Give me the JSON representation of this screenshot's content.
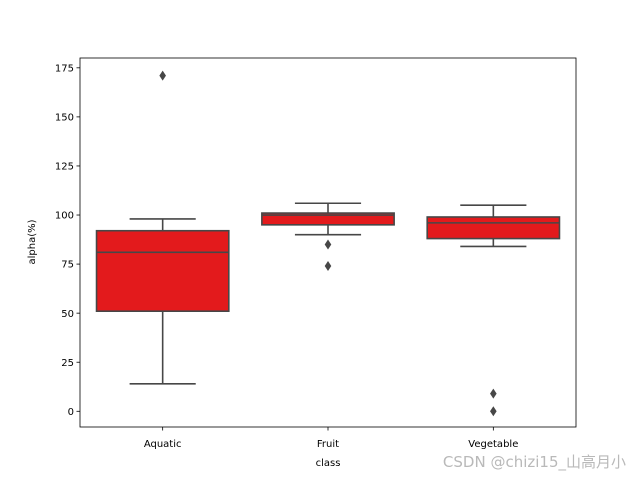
{
  "chart_data": {
    "type": "boxplot",
    "categories": [
      "Aquatic",
      "Fruit",
      "Vegetable"
    ],
    "xlabel": "class",
    "ylabel": "alpha(%)",
    "ylim": [
      -8,
      180
    ],
    "yticks": [
      0,
      25,
      50,
      75,
      100,
      125,
      150,
      175
    ],
    "grid": false,
    "box_color": "#e31a1c",
    "line_color": "#474747",
    "boxes": [
      {
        "category": "Aquatic",
        "whisker_low": 14,
        "q1": 51,
        "median": 81,
        "q3": 92,
        "whisker_high": 98,
        "outliers": [
          171
        ]
      },
      {
        "category": "Fruit",
        "whisker_low": 90,
        "q1": 95,
        "median": 100,
        "q3": 101,
        "whisker_high": 106,
        "outliers": [
          85,
          74
        ]
      },
      {
        "category": "Vegetable",
        "whisker_low": 84,
        "q1": 88,
        "median": 96,
        "q3": 99,
        "whisker_high": 105,
        "outliers": [
          9,
          0
        ]
      }
    ]
  },
  "watermark": "CSDN @chizi15_山高月小"
}
